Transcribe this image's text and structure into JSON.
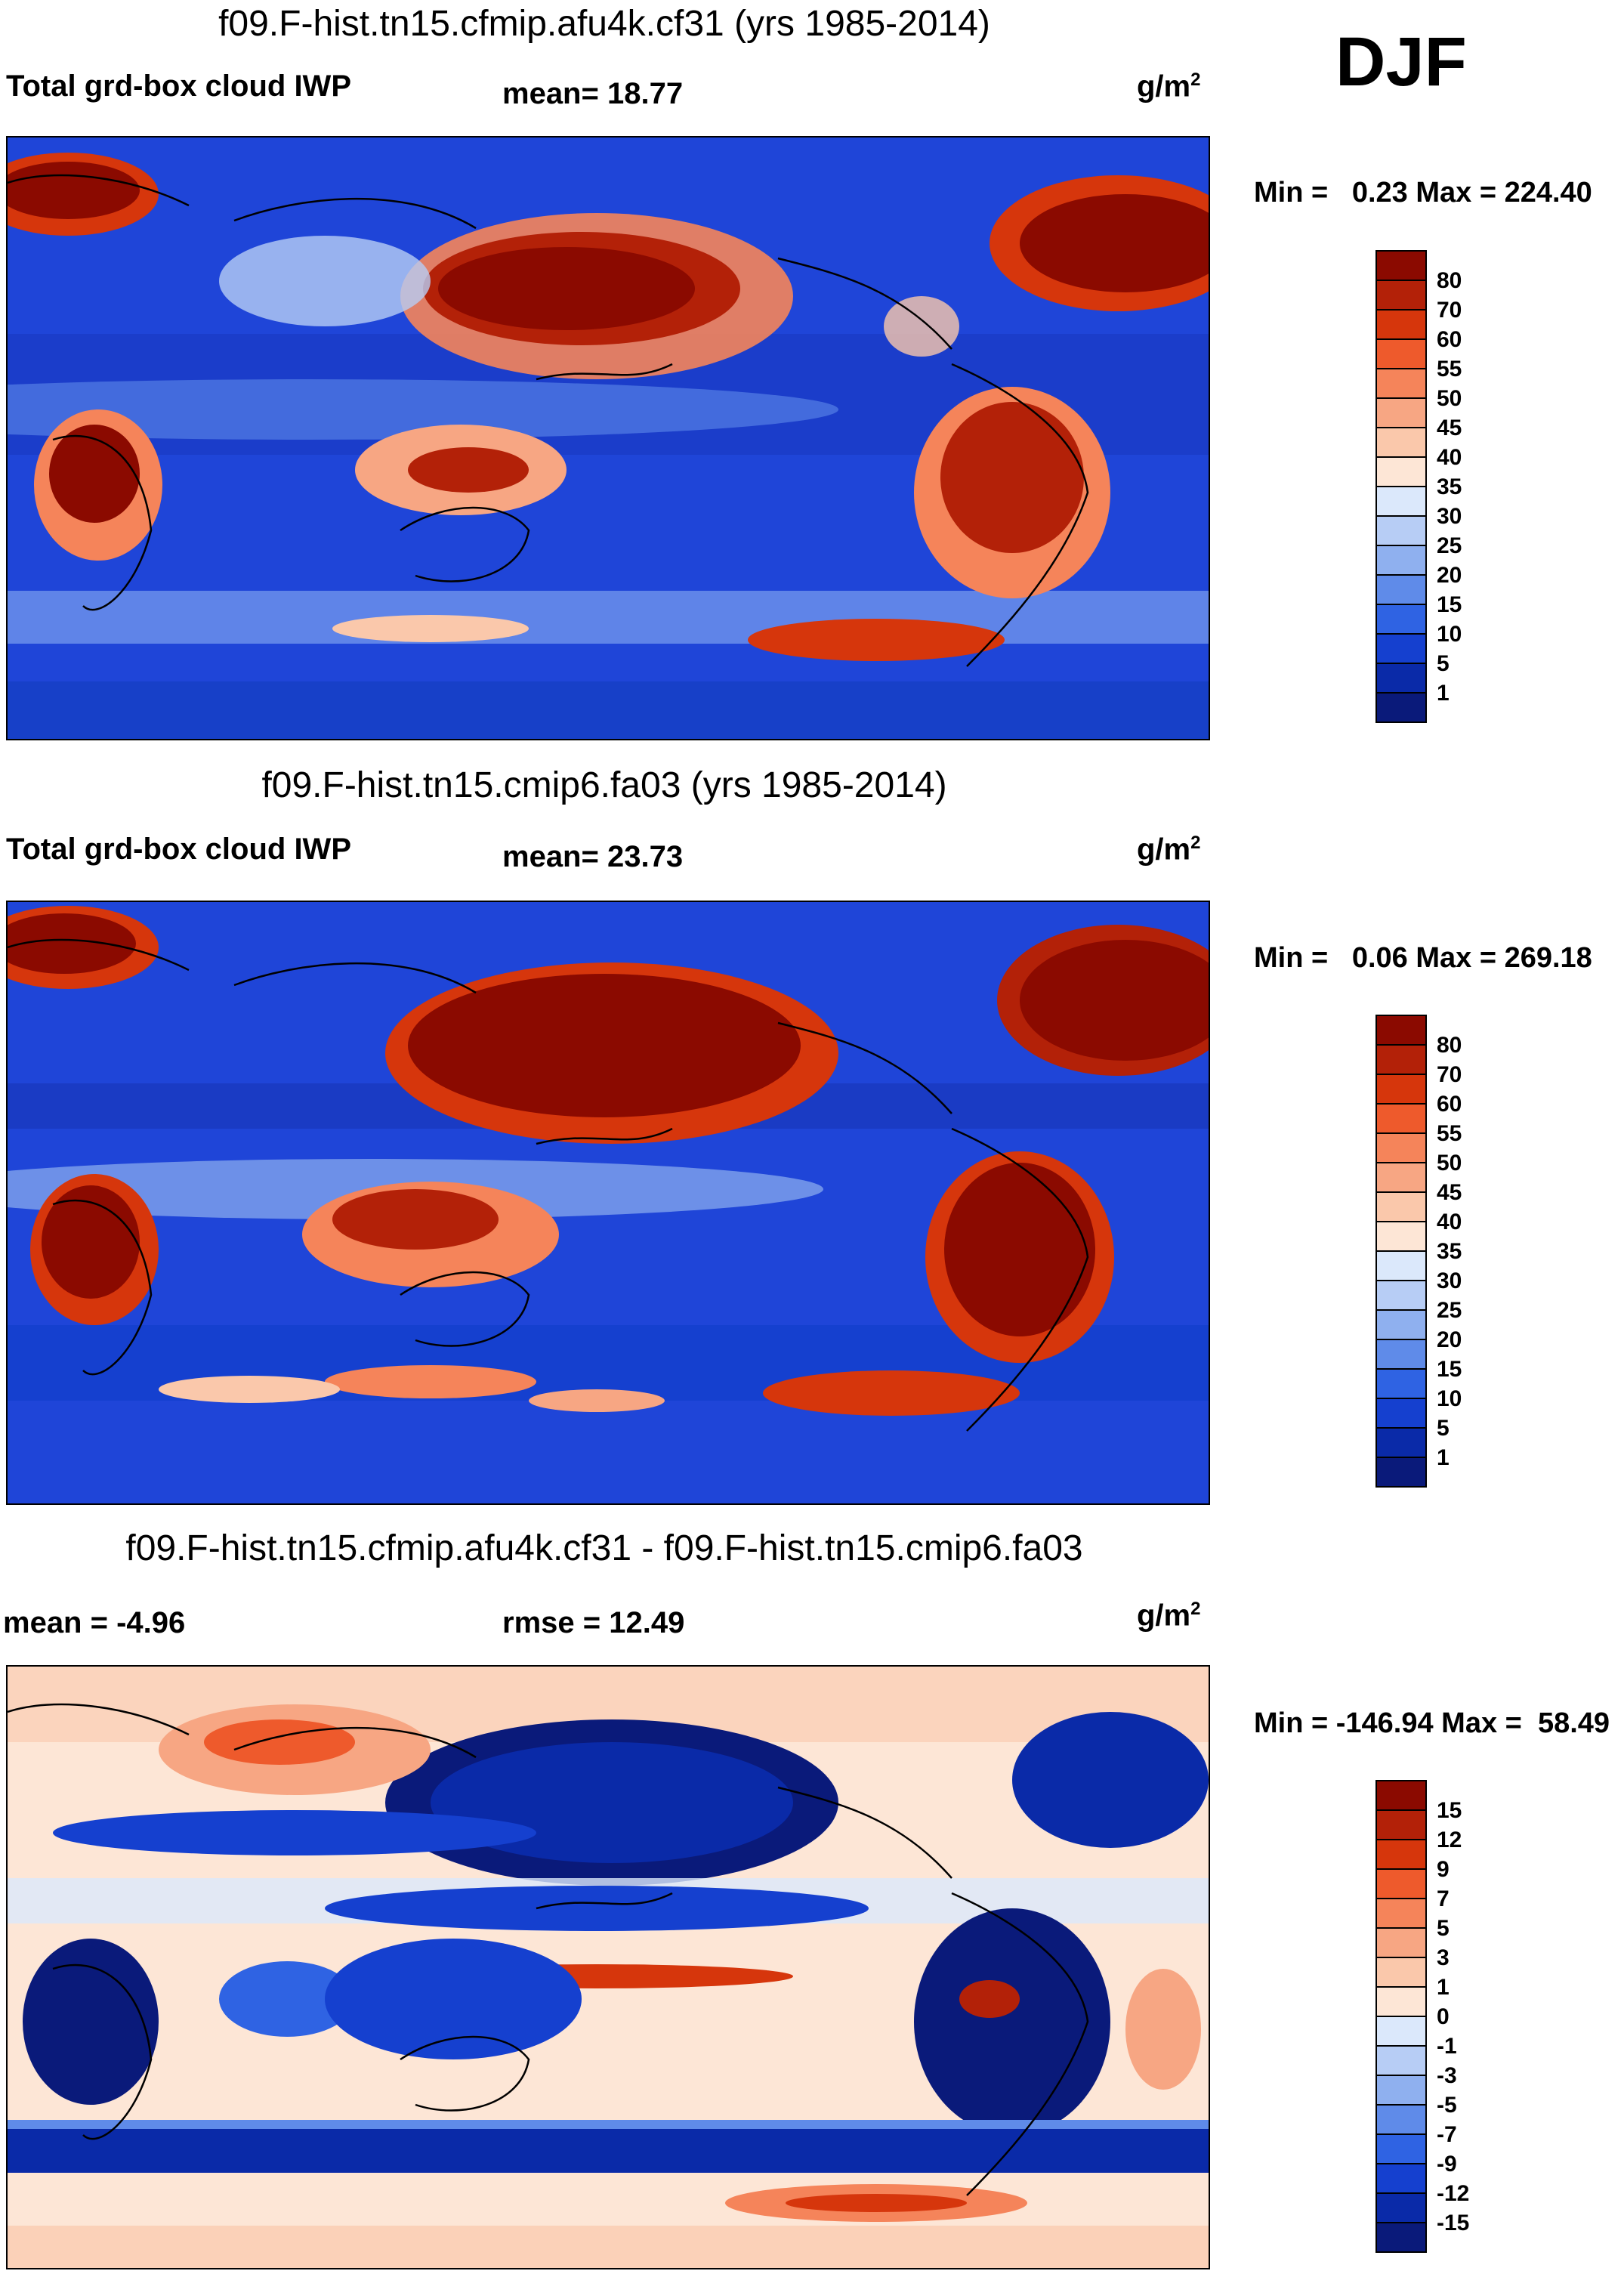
{
  "season": "DJF",
  "panels": [
    {
      "title": "f09.F-hist.tn15.cfmip.afu4k.cf31 (yrs 1985-2014)",
      "left_label": "Total grd-box cloud IWP",
      "stat_label": "mean=  18.77",
      "units": "g/m",
      "units_sup": "2",
      "minmax": "Min =   0.23 Max = 224.40",
      "colorbar": {
        "labels": [
          "80",
          "70",
          "60",
          "55",
          "50",
          "45",
          "40",
          "35",
          "30",
          "25",
          "20",
          "15",
          "10",
          "5",
          "1"
        ],
        "colors": [
          "#8b0a00",
          "#b32108",
          "#d6360c",
          "#ee5a2c",
          "#f5845a",
          "#f7a683",
          "#fac8ab",
          "#fde6d6",
          "#dbe8fb",
          "#b7cdf5",
          "#8fb0ef",
          "#5f8be9",
          "#2f63e3",
          "#1540cf",
          "#0a2aa8",
          "#0a1a7a"
        ]
      },
      "chart_data": {
        "type": "heatmap",
        "title": "f09.F-hist.tn15.cfmip.afu4k.cf31 (yrs 1985-2014)",
        "variable": "Total grd-box cloud IWP",
        "units": "g/m2",
        "mean": 18.77,
        "min": 0.23,
        "max": 224.4,
        "levels": [
          1,
          5,
          10,
          15,
          20,
          25,
          30,
          35,
          40,
          45,
          50,
          55,
          60,
          70,
          80
        ]
      }
    },
    {
      "title": "f09.F-hist.tn15.cmip6.fa03 (yrs 1985-2014)",
      "left_label": "Total grd-box cloud IWP",
      "stat_label": "mean=  23.73",
      "units": "g/m",
      "units_sup": "2",
      "minmax": "Min =   0.06 Max = 269.18",
      "colorbar": {
        "labels": [
          "80",
          "70",
          "60",
          "55",
          "50",
          "45",
          "40",
          "35",
          "30",
          "25",
          "20",
          "15",
          "10",
          "5",
          "1"
        ],
        "colors": [
          "#8b0a00",
          "#b32108",
          "#d6360c",
          "#ee5a2c",
          "#f5845a",
          "#f7a683",
          "#fac8ab",
          "#fde6d6",
          "#dbe8fb",
          "#b7cdf5",
          "#8fb0ef",
          "#5f8be9",
          "#2f63e3",
          "#1540cf",
          "#0a2aa8",
          "#0a1a7a"
        ]
      },
      "chart_data": {
        "type": "heatmap",
        "title": "f09.F-hist.tn15.cmip6.fa03 (yrs 1985-2014)",
        "variable": "Total grd-box cloud IWP",
        "units": "g/m2",
        "mean": 23.73,
        "min": 0.06,
        "max": 269.18,
        "levels": [
          1,
          5,
          10,
          15,
          20,
          25,
          30,
          35,
          40,
          45,
          50,
          55,
          60,
          70,
          80
        ]
      }
    },
    {
      "title": "f09.F-hist.tn15.cfmip.afu4k.cf31 - f09.F-hist.tn15.cmip6.fa03",
      "left_label": "mean =  -4.96",
      "stat_label": "rmse =  12.49",
      "units": "g/m",
      "units_sup": "2",
      "minmax": "Min = -146.94 Max =  58.49",
      "colorbar": {
        "labels": [
          "15",
          "12",
          "9",
          "7",
          "5",
          "3",
          "1",
          "0",
          "-1",
          "-3",
          "-5",
          "-7",
          "-9",
          "-12",
          "-15"
        ],
        "colors": [
          "#8b0a00",
          "#b32108",
          "#d6360c",
          "#ee5a2c",
          "#f5845a",
          "#f7a683",
          "#fac8ab",
          "#fde6d6",
          "#dbe8fb",
          "#b7cdf5",
          "#8fb0ef",
          "#5f8be9",
          "#2f63e3",
          "#1540cf",
          "#0a2aa8",
          "#0a1a7a"
        ]
      },
      "chart_data": {
        "type": "heatmap",
        "title": "f09.F-hist.tn15.cfmip.afu4k.cf31 - f09.F-hist.tn15.cmip6.fa03",
        "variable": "Total grd-box cloud IWP difference",
        "units": "g/m2",
        "mean": -4.96,
        "rmse": 12.49,
        "min": -146.94,
        "max": 58.49,
        "levels": [
          -15,
          -12,
          -9,
          -7,
          -5,
          -3,
          -1,
          0,
          1,
          3,
          5,
          7,
          9,
          12,
          15
        ]
      }
    }
  ]
}
